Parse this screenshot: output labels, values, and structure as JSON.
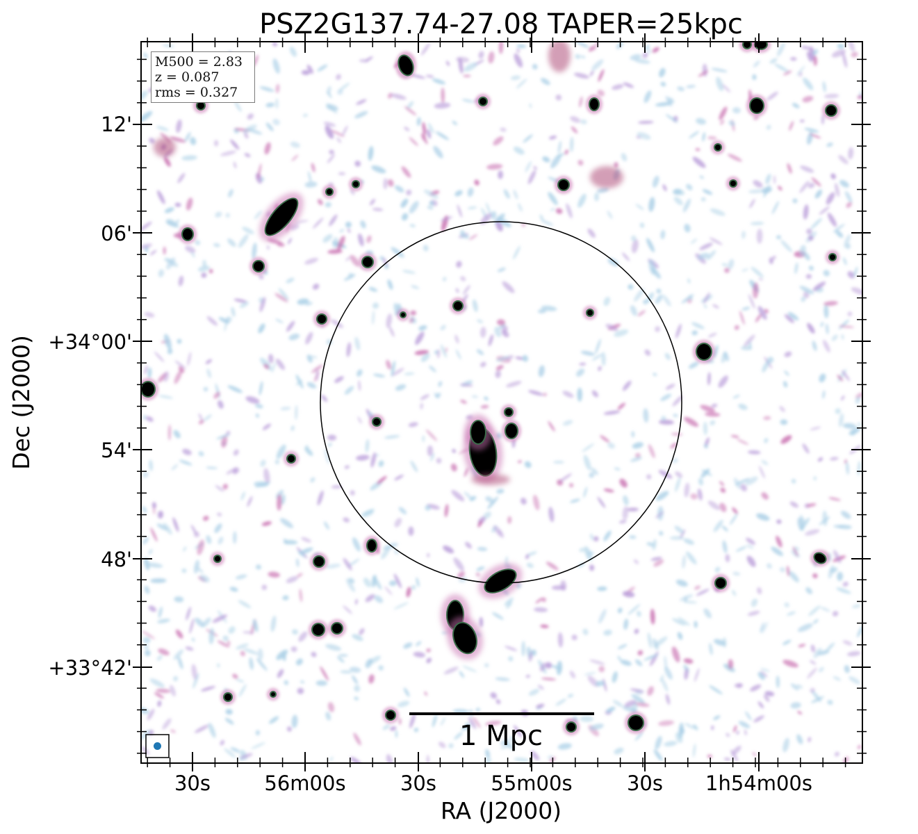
{
  "plot": {
    "title": "PSZ2G137.74-27.08 TAPER=25kpc",
    "xlabel": "RA (J2000)",
    "ylabel": "Dec (J2000)",
    "x_ticks": [
      "30s",
      "56m00s",
      "30s",
      "55m00s",
      "30s",
      "1h54m00s"
    ],
    "y_ticks": [
      "12'",
      "06'",
      "+34°00'",
      "54'",
      "48'",
      "+33°42'"
    ],
    "scalebar_label": "1 Mpc"
  },
  "info_box": {
    "mass": "M500 = 2.83",
    "redshift": "z = 0.087",
    "rms": "rms = 0.327"
  },
  "colors": {
    "faint_noise": "#a9cfe6",
    "noise_purple": "#b79ad8",
    "moderate": "#c86fb0",
    "bright_core": "#000000",
    "source_ring": "#3c6b4a",
    "beam": "#1f77b4",
    "circle": "#000000"
  }
}
